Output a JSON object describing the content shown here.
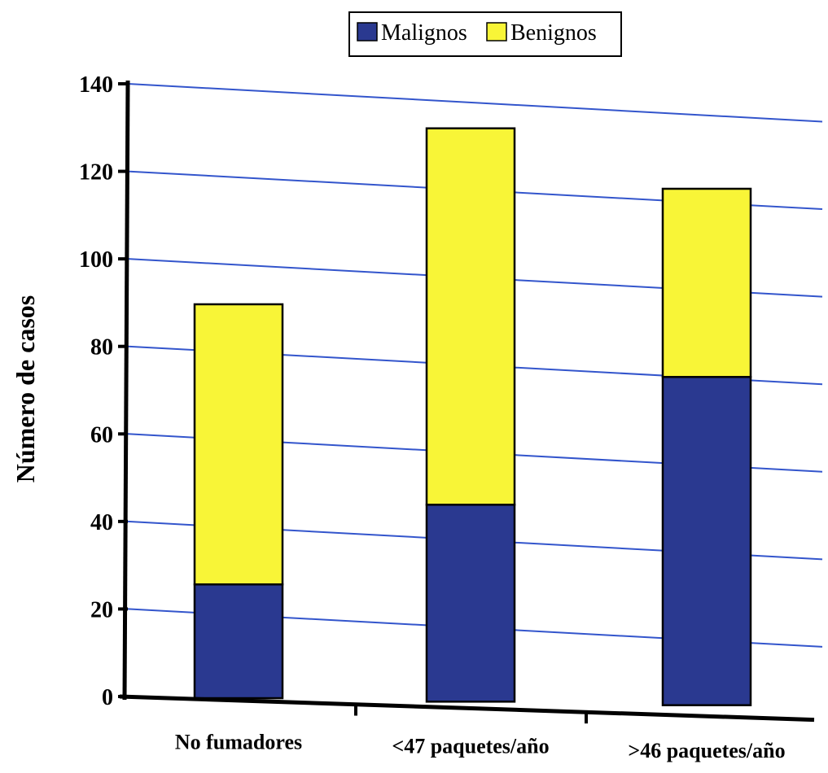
{
  "chart_data": {
    "type": "bar",
    "stacked": true,
    "categories": [
      "No fumadores",
      "<47 paquetes/año",
      ">46 paquetes/año"
    ],
    "series": [
      {
        "name": "Malignos",
        "values": [
          26,
          45,
          75
        ],
        "color": "#2a3990"
      },
      {
        "name": "Benignos",
        "values": [
          64,
          86,
          43
        ],
        "color": "#f8f537"
      }
    ],
    "title": "",
    "xlabel": "",
    "ylabel": "Número de casos",
    "ylim": [
      0,
      140
    ],
    "yticks": [
      "0",
      "20",
      "40",
      "60",
      "80",
      "100",
      "120",
      "140"
    ],
    "grid": true,
    "grid_color": "#3355cc",
    "legend_position": "top-center"
  }
}
